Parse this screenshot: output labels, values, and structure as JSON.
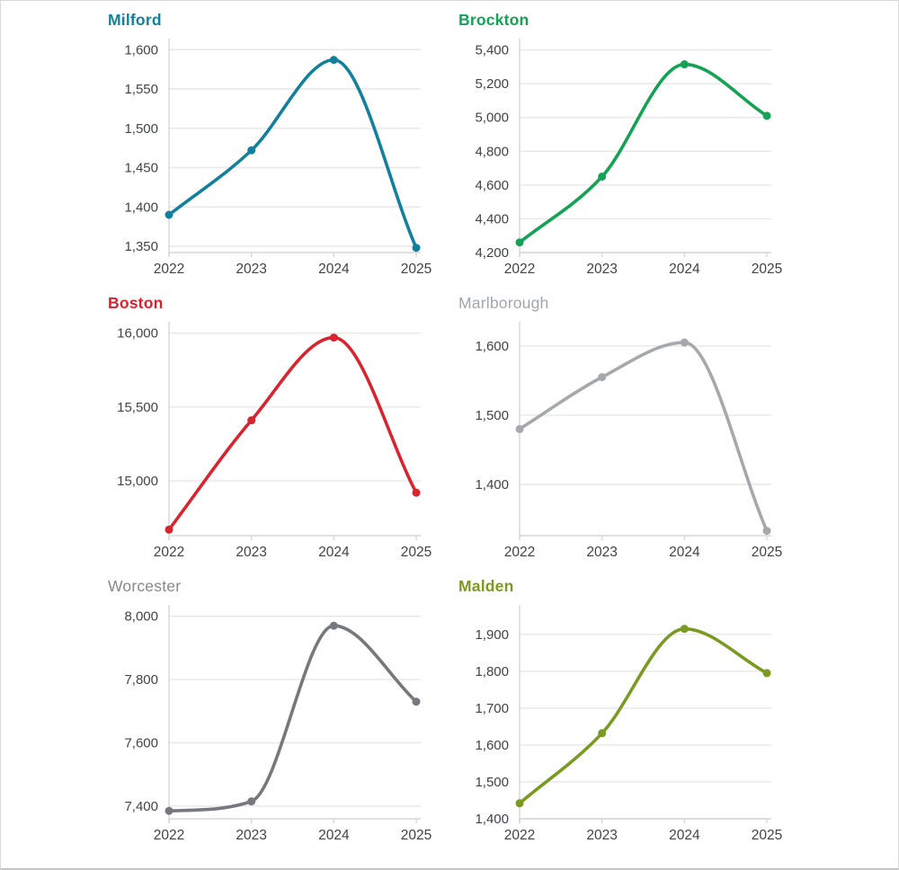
{
  "page": {
    "background": "#ffffff",
    "border_color": "#d9d9d9",
    "gridline_color": "#e9e7e7",
    "axis_color": "#d8d5d5",
    "tick_label_color": "#404347"
  },
  "chart_data": [
    {
      "type": "line",
      "title": "Milford",
      "color": "#12809c",
      "title_color": "#12809c",
      "title_bold": true,
      "x": [
        2022,
        2023,
        2024,
        2025
      ],
      "values": [
        1390,
        1472,
        1587,
        1348
      ],
      "yticks": [
        1350,
        1400,
        1450,
        1500,
        1550,
        1600
      ],
      "ylim": [
        1342,
        1614
      ],
      "grid": true,
      "legend": "none"
    },
    {
      "type": "line",
      "title": "Brockton",
      "color": "#14a354",
      "title_color": "#14a354",
      "title_bold": true,
      "x": [
        2022,
        2023,
        2024,
        2025
      ],
      "values": [
        4260,
        4650,
        5315,
        5010
      ],
      "yticks": [
        4200,
        4400,
        4600,
        4800,
        5000,
        5200,
        5400
      ],
      "ylim": [
        4200,
        5467
      ],
      "grid": true,
      "legend": "none"
    },
    {
      "type": "line",
      "title": "Boston",
      "color": "#d9232e",
      "title_color": "#d9232e",
      "title_bold": true,
      "x": [
        2022,
        2023,
        2024,
        2025
      ],
      "values": [
        14670,
        15410,
        15970,
        14920
      ],
      "yticks": [
        15000,
        15500,
        16000
      ],
      "ylim": [
        14629,
        16077
      ],
      "grid": true,
      "legend": "none"
    },
    {
      "type": "line",
      "title": "Marlborough",
      "color": "#a5a8ad",
      "title_color": "#a2a6ab",
      "title_bold": false,
      "x": [
        2022,
        2023,
        2024,
        2025
      ],
      "values": [
        1480,
        1555,
        1605,
        1333
      ],
      "yticks": [
        1400,
        1500,
        1600
      ],
      "ylim": [
        1326,
        1635
      ],
      "grid": true,
      "legend": "none"
    },
    {
      "type": "line",
      "title": "Worcester",
      "color": "#75787c",
      "title_color": "#85888c",
      "title_bold": false,
      "x": [
        2022,
        2023,
        2024,
        2025
      ],
      "values": [
        7385,
        7415,
        7970,
        7730
      ],
      "yticks": [
        7400,
        7600,
        7800,
        8000
      ],
      "ylim": [
        7360,
        8036
      ],
      "grid": true,
      "legend": "none"
    },
    {
      "type": "line",
      "title": "Malden",
      "color": "#7a9b22",
      "title_color": "#7a9b22",
      "title_bold": true,
      "x": [
        2022,
        2023,
        2024,
        2025
      ],
      "values": [
        1442,
        1632,
        1915,
        1795
      ],
      "yticks": [
        1400,
        1500,
        1600,
        1700,
        1800,
        1900
      ],
      "ylim": [
        1400,
        1980
      ],
      "grid": true,
      "legend": "none"
    }
  ]
}
